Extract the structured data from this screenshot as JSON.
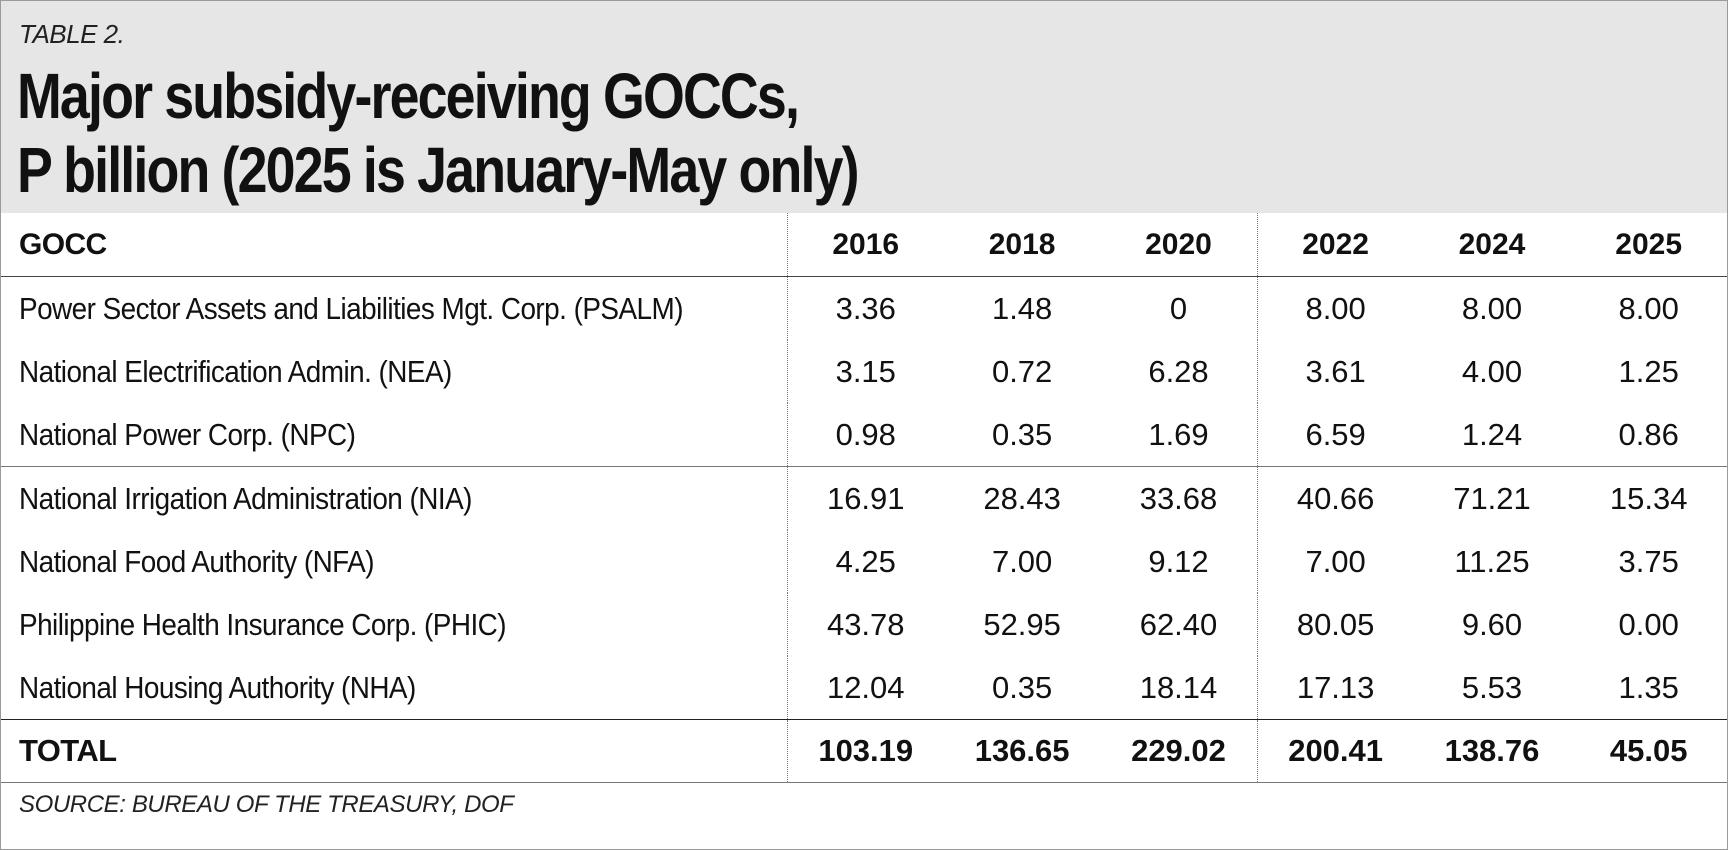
{
  "label": "TABLE 2.",
  "title": [
    "Major subsidy-receiving GOCCs,",
    "P billion (2025 is January-May only)"
  ],
  "columns": [
    "GOCC",
    "2016",
    "2018",
    "2020",
    "2022",
    "2024",
    "2025"
  ],
  "rows": [
    {
      "name": "Power Sector Assets and Liabilities Mgt. Corp. (PSALM)",
      "values": [
        "3.36",
        "1.48",
        "0",
        "8.00",
        "8.00",
        "8.00"
      ]
    },
    {
      "name": "National Electrification Admin. (NEA)",
      "values": [
        "3.15",
        "0.72",
        "6.28",
        "3.61",
        "4.00",
        "1.25"
      ]
    },
    {
      "name": "National Power Corp. (NPC)",
      "values": [
        "0.98",
        "0.35",
        "1.69",
        "6.59",
        "1.24",
        "0.86"
      ]
    },
    {
      "name": "National Irrigation Administration (NIA)",
      "values": [
        "16.91",
        "28.43",
        "33.68",
        "40.66",
        "71.21",
        "15.34"
      ]
    },
    {
      "name": "National Food Authority (NFA)",
      "values": [
        "4.25",
        "7.00",
        "9.12",
        "7.00",
        "11.25",
        "3.75"
      ]
    },
    {
      "name": "Philippine Health Insurance Corp. (PHIC)",
      "values": [
        "43.78",
        "52.95",
        "62.40",
        "80.05",
        "9.60",
        "0.00"
      ]
    },
    {
      "name": "National Housing Authority (NHA)",
      "values": [
        "12.04",
        "0.35",
        "18.14",
        "17.13",
        "5.53",
        "1.35"
      ]
    }
  ],
  "total": {
    "name": "TOTAL",
    "values": [
      "103.19",
      "136.65",
      "229.02",
      "200.41",
      "138.76",
      "45.05"
    ]
  },
  "source": "SOURCE: BUREAU OF THE TREASURY, DOF"
}
